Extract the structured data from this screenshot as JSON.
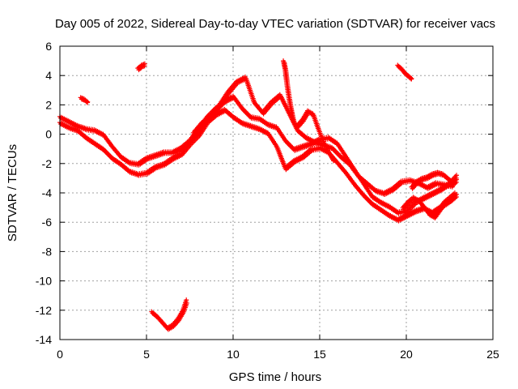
{
  "chart_data": {
    "type": "scatter",
    "title": "Day 005 of 2022, Sidereal Day-to-day VTEC variation (SDTVAR) for receiver vacs",
    "xlabel": "GPS time / hours",
    "ylabel": "SDTVAR / TECUs",
    "xlim": [
      0,
      25
    ],
    "ylim": [
      -14,
      6
    ],
    "xticks": [
      0,
      5,
      10,
      15,
      20,
      25
    ],
    "yticks": [
      -14,
      -12,
      -10,
      -8,
      -6,
      -4,
      -2,
      0,
      2,
      4,
      6
    ],
    "grid": true,
    "marker": "+",
    "color": "#ff0000",
    "series": [
      {
        "name": "trace-a",
        "x": [
          0.0,
          0.5,
          1.0,
          1.5,
          2.0,
          2.5,
          3.0,
          3.5,
          4.0,
          4.5,
          5.0,
          5.5,
          6.0,
          6.5,
          7.0,
          7.5,
          8.0,
          8.5,
          9.0,
          9.5,
          10.0,
          10.5,
          11.0,
          11.5,
          12.0,
          12.5,
          13.0,
          13.5,
          14.0,
          14.5,
          15.0,
          15.5,
          16.0,
          16.5,
          17.0,
          17.5,
          18.0,
          18.5,
          19.0,
          19.5,
          20.0,
          20.5,
          21.0,
          21.5,
          22.0,
          22.5,
          22.9
        ],
        "y": [
          1.2,
          0.9,
          0.6,
          0.4,
          0.3,
          0.0,
          -0.8,
          -1.5,
          -1.9,
          -2.0,
          -1.6,
          -1.4,
          -1.2,
          -1.2,
          -0.9,
          -0.4,
          0.4,
          1.2,
          1.8,
          2.3,
          2.6,
          1.8,
          1.2,
          1.1,
          0.7,
          0.5,
          -0.4,
          -1.0,
          -0.8,
          -0.6,
          -0.3,
          -0.2,
          -0.6,
          -1.5,
          -2.4,
          -3.3,
          -4.2,
          -4.6,
          -4.9,
          -5.3,
          -5.2,
          -4.6,
          -4.3,
          -4.0,
          -3.7,
          -3.3,
          -2.8
        ]
      },
      {
        "name": "trace-b",
        "x": [
          0.0,
          0.5,
          1.0,
          1.5,
          2.0,
          2.5,
          3.0,
          3.5,
          4.0,
          4.5,
          5.0,
          5.5,
          6.0,
          6.5,
          7.0,
          7.5,
          8.0,
          8.5,
          9.0,
          9.5,
          10.0,
          10.5,
          11.0,
          11.5,
          12.0,
          12.5,
          13.0,
          13.5,
          14.0,
          14.5,
          15.0,
          15.5,
          16.0,
          16.5,
          17.0,
          17.5,
          18.0,
          18.5,
          19.0,
          19.5,
          20.0,
          20.5,
          21.0,
          21.5,
          22.0,
          22.5,
          22.9
        ],
        "y": [
          0.8,
          0.5,
          0.3,
          -0.2,
          -0.6,
          -1.0,
          -1.6,
          -2.0,
          -2.5,
          -2.7,
          -2.6,
          -2.2,
          -2.0,
          -1.6,
          -1.3,
          -0.6,
          0.0,
          0.9,
          1.4,
          1.7,
          1.2,
          0.8,
          0.6,
          0.4,
          0.1,
          -0.8,
          -2.3,
          -1.8,
          -1.5,
          -1.0,
          -0.9,
          -1.2,
          -1.9,
          -2.6,
          -3.4,
          -4.1,
          -4.7,
          -5.1,
          -5.5,
          -5.8,
          -5.5,
          -5.2,
          -5.0,
          -5.3,
          -4.9,
          -4.5,
          -4.1
        ]
      },
      {
        "name": "trace-c",
        "x": [
          7.7,
          8.2,
          8.7,
          9.2,
          9.7,
          10.2,
          10.7,
          11.2,
          11.7,
          12.2,
          12.7,
          13.2,
          13.7,
          14.2,
          14.7,
          15.2,
          15.7,
          16.2,
          16.7,
          17.2,
          17.7,
          18.2,
          18.7,
          19.2,
          19.7,
          20.2,
          20.7,
          21.2,
          21.7,
          22.2,
          22.7
        ],
        "y": [
          0.1,
          0.8,
          1.3,
          2.0,
          2.9,
          3.6,
          3.9,
          2.2,
          1.5,
          2.2,
          2.7,
          1.5,
          0.3,
          -0.2,
          -0.5,
          -0.7,
          -0.9,
          -1.5,
          -2.0,
          -2.8,
          -3.3,
          -3.8,
          -4.0,
          -3.7,
          -3.2,
          -3.1,
          -3.3,
          -3.6,
          -3.3,
          -3.4,
          -3.5
        ]
      },
      {
        "name": "trace-d",
        "x": [
          12.9,
          13.0,
          13.1,
          13.2,
          13.3,
          13.4,
          13.5,
          13.7,
          14.0,
          14.3,
          14.6,
          14.9,
          15.2,
          15.5,
          15.8
        ],
        "y": [
          5.0,
          4.4,
          3.4,
          2.6,
          1.9,
          1.3,
          0.8,
          0.6,
          1.0,
          1.6,
          1.4,
          0.4,
          -0.5,
          -1.2,
          -1.8
        ]
      },
      {
        "name": "trace-e",
        "x": [
          20.3,
          20.6,
          20.9,
          21.2,
          21.5,
          21.8,
          22.1,
          22.4,
          22.7,
          22.9
        ],
        "y": [
          -3.6,
          -3.2,
          -3.0,
          -2.9,
          -2.7,
          -2.6,
          -2.7,
          -3.0,
          -3.3,
          -3.1
        ]
      },
      {
        "name": "trace-f",
        "x": [
          19.8,
          20.1,
          20.4,
          20.7,
          21.0,
          21.3,
          21.6,
          21.9,
          22.2,
          22.5,
          22.8
        ],
        "y": [
          -5.0,
          -4.6,
          -4.3,
          -4.5,
          -4.9,
          -5.4,
          -5.6,
          -5.1,
          -4.6,
          -4.3,
          -4.0
        ]
      },
      {
        "name": "trace-g",
        "x": [
          1.2,
          1.4,
          1.6
        ],
        "y": [
          2.5,
          2.4,
          2.2
        ]
      },
      {
        "name": "trace-h",
        "x": [
          4.5,
          4.7,
          4.9
        ],
        "y": [
          4.5,
          4.7,
          4.8
        ]
      },
      {
        "name": "trace-i",
        "x": [
          19.5,
          19.7,
          19.9,
          20.1,
          20.3
        ],
        "y": [
          4.7,
          4.5,
          4.2,
          4.0,
          3.8
        ]
      },
      {
        "name": "trace-j",
        "x": [
          5.3,
          5.6,
          5.9,
          6.2,
          6.5,
          6.8,
          7.1,
          7.3
        ],
        "y": [
          -12.1,
          -12.4,
          -12.8,
          -13.2,
          -13.0,
          -12.6,
          -12.0,
          -11.3
        ]
      }
    ]
  }
}
